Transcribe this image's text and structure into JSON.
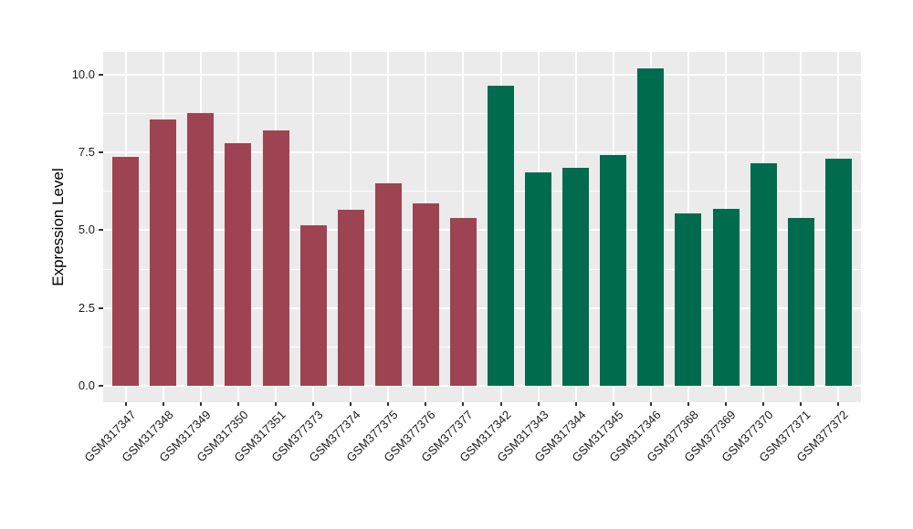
{
  "chart_data": {
    "type": "bar",
    "title": "",
    "xlabel": "",
    "ylabel": "Expression Level",
    "categories": [
      "GSM317347",
      "GSM317348",
      "GSM317349",
      "GSM317350",
      "GSM317351",
      "GSM377373",
      "GSM377374",
      "GSM377375",
      "GSM377376",
      "GSM377377",
      "GSM317342",
      "GSM317343",
      "GSM317344",
      "GSM317345",
      "GSM317346",
      "GSM377368",
      "GSM377369",
      "GSM377370",
      "GSM377371",
      "GSM377372"
    ],
    "values": [
      7.35,
      8.55,
      8.75,
      7.8,
      8.2,
      5.15,
      5.65,
      6.5,
      5.85,
      5.4,
      9.65,
      6.85,
      7.0,
      7.4,
      10.2,
      5.55,
      5.7,
      7.15,
      5.4,
      7.3
    ],
    "bar_colors": [
      "#9E4352",
      "#9E4352",
      "#9E4352",
      "#9E4352",
      "#9E4352",
      "#9E4352",
      "#9E4352",
      "#9E4352",
      "#9E4352",
      "#9E4352",
      "#006B4D",
      "#006B4D",
      "#006B4D",
      "#006B4D",
      "#006B4D",
      "#006B4D",
      "#006B4D",
      "#006B4D",
      "#006B4D",
      "#006B4D"
    ],
    "group_colors": {
      "first_ten": "#9E4352",
      "last_ten": "#006B4D"
    },
    "y_ticks": [
      "0.0",
      "2.5",
      "5.0",
      "7.5",
      "10.0"
    ],
    "y_tick_values": [
      0,
      2.5,
      5,
      7.5,
      10
    ],
    "y_minor_ticks": [
      1.25,
      3.75,
      6.25,
      8.75
    ],
    "ylim": [
      -0.52,
      10.72
    ],
    "grid": "on",
    "legend": "none",
    "panel_background": "#EBEBEB",
    "grid_color": "#FFFFFF",
    "tick_mark_color": "#333333",
    "tick_text_color": "#1A1A1A"
  }
}
